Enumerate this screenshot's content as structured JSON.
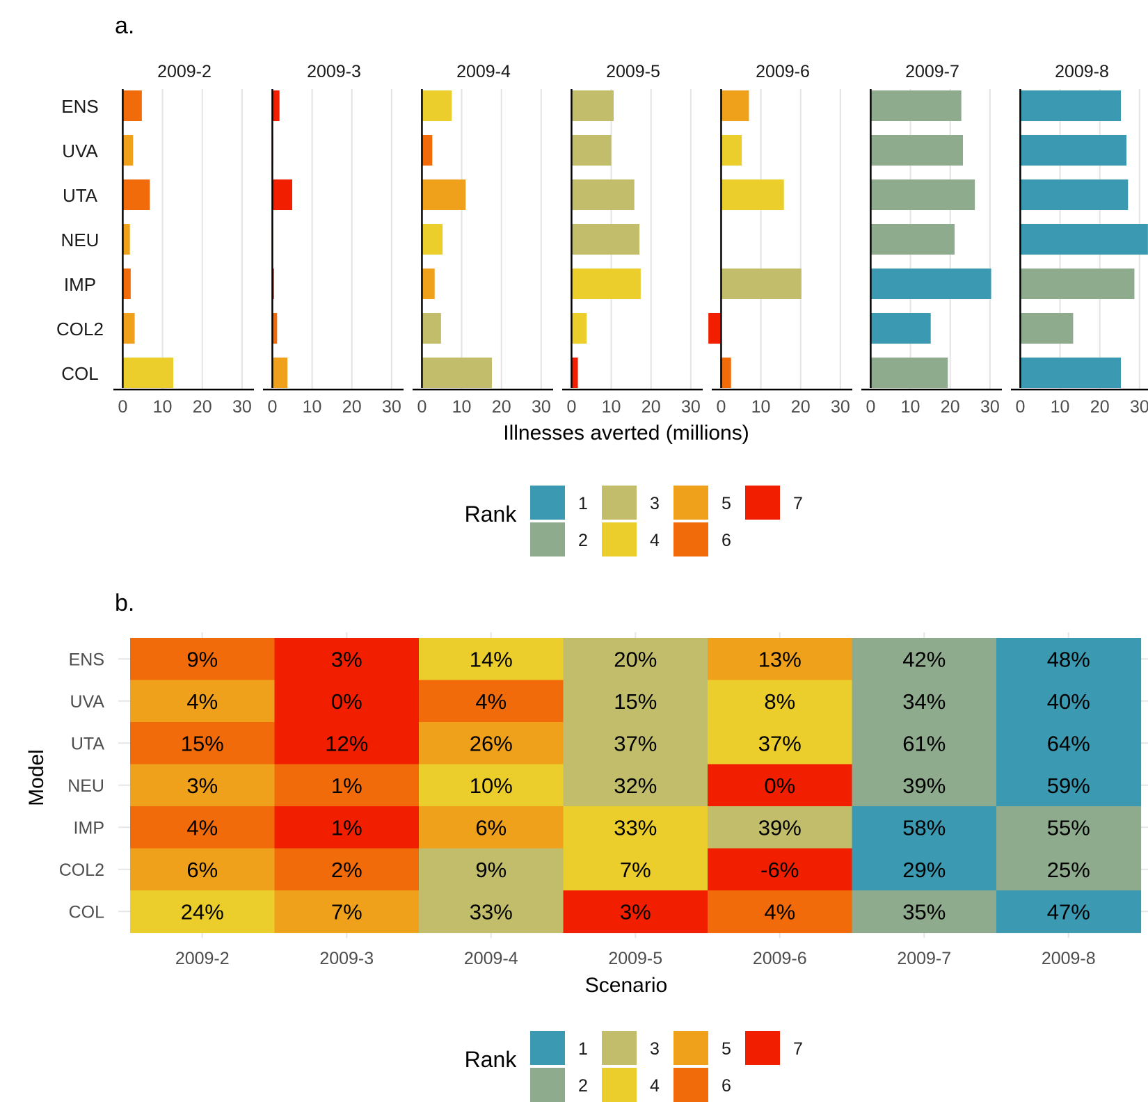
{
  "panels": {
    "a": "a.",
    "b": "b."
  },
  "colors": {
    "1": "#3b9ab2",
    "2": "#8fab8e",
    "3": "#c1bd6a",
    "4": "#ebcd2b",
    "5": "#f0a11b",
    "6": "#f26b0a",
    "7": "#f21e00"
  },
  "chart_data": [
    {
      "type": "bar",
      "orientation": "horizontal",
      "facets": [
        "2009-2",
        "2009-3",
        "2009-4",
        "2009-5",
        "2009-6",
        "2009-7",
        "2009-8"
      ],
      "models": [
        "ENS",
        "UVA",
        "UTA",
        "NEU",
        "IMP",
        "COL2",
        "COL"
      ],
      "xlabel": "Illnesses averted (millions)",
      "xlim": [
        -2,
        33
      ],
      "xticks": [
        "0",
        "10",
        "20",
        "30"
      ],
      "grid": "vertical",
      "values": [
        [
          4.8,
          2.6,
          6.8,
          1.8,
          2.0,
          3.0,
          12.7
        ],
        [
          1.8,
          0.2,
          5.0,
          0.2,
          0.4,
          1.2,
          3.8
        ],
        [
          7.5,
          2.6,
          11.0,
          5.2,
          3.2,
          4.8,
          17.6
        ],
        [
          10.6,
          10.0,
          15.8,
          17.1,
          17.4,
          3.8,
          1.6
        ],
        [
          7.0,
          5.2,
          15.8,
          0.1,
          20.2,
          -3.2,
          2.5
        ],
        [
          22.8,
          23.2,
          26.2,
          21.1,
          30.3,
          15.1,
          19.4
        ],
        [
          25.3,
          26.7,
          27.1,
          32.1,
          28.7,
          13.3,
          25.3
        ]
      ],
      "ranks": [
        [
          6,
          5,
          6,
          5,
          6,
          5,
          4
        ],
        [
          7,
          7,
          7,
          6,
          7,
          6,
          5
        ],
        [
          4,
          6,
          5,
          4,
          5,
          3,
          3
        ],
        [
          3,
          3,
          3,
          3,
          4,
          4,
          7
        ],
        [
          5,
          4,
          4,
          7,
          3,
          7,
          6
        ],
        [
          2,
          2,
          2,
          2,
          1,
          1,
          2
        ],
        [
          1,
          1,
          1,
          1,
          2,
          2,
          1
        ]
      ],
      "legend": {
        "title": "Rank",
        "entries": [
          "1",
          "2",
          "3",
          "4",
          "5",
          "6",
          "7"
        ],
        "position": "bottom"
      }
    },
    {
      "type": "heatmap",
      "x": [
        "2009-2",
        "2009-3",
        "2009-4",
        "2009-5",
        "2009-6",
        "2009-7",
        "2009-8"
      ],
      "y": [
        "ENS",
        "UVA",
        "UTA",
        "NEU",
        "IMP",
        "COL2",
        "COL"
      ],
      "xlabel": "Scenario",
      "ylabel": "Model",
      "labels": [
        [
          "9%",
          "3%",
          "14%",
          "20%",
          "13%",
          "42%",
          "48%"
        ],
        [
          "4%",
          "0%",
          "4%",
          "15%",
          "8%",
          "34%",
          "40%"
        ],
        [
          "15%",
          "12%",
          "26%",
          "37%",
          "37%",
          "61%",
          "64%"
        ],
        [
          "3%",
          "1%",
          "10%",
          "32%",
          "0%",
          "39%",
          "59%"
        ],
        [
          "4%",
          "1%",
          "6%",
          "33%",
          "39%",
          "58%",
          "55%"
        ],
        [
          "6%",
          "2%",
          "9%",
          "7%",
          "-6%",
          "29%",
          "25%"
        ],
        [
          "24%",
          "7%",
          "33%",
          "3%",
          "4%",
          "35%",
          "47%"
        ]
      ],
      "ranks": [
        [
          6,
          7,
          4,
          3,
          5,
          2,
          1
        ],
        [
          5,
          7,
          6,
          3,
          4,
          2,
          1
        ],
        [
          6,
          7,
          5,
          3,
          4,
          2,
          1
        ],
        [
          5,
          6,
          4,
          3,
          7,
          2,
          1
        ],
        [
          6,
          7,
          5,
          4,
          3,
          1,
          2
        ],
        [
          5,
          6,
          3,
          4,
          7,
          1,
          2
        ],
        [
          4,
          5,
          3,
          7,
          6,
          2,
          1
        ]
      ],
      "legend": {
        "title": "Rank",
        "entries": [
          "1",
          "2",
          "3",
          "4",
          "5",
          "6",
          "7"
        ],
        "position": "bottom"
      }
    }
  ]
}
